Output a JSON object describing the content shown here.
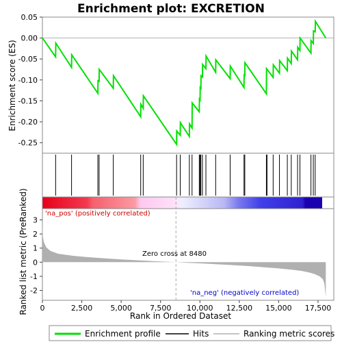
{
  "chart_data": [
    {
      "type": "line",
      "title": "Enrichment plot: EXCRETION",
      "ylabel": "Enrichment score (ES)",
      "xlim": [
        0,
        18500
      ],
      "ylim": [
        -0.275,
        0.05
      ],
      "yticks": [
        0.05,
        0.0,
        -0.05,
        -0.1,
        -0.15,
        -0.2,
        -0.25
      ],
      "ytick_labels": [
        "0.05",
        "0.00",
        "-0.05",
        "-0.10",
        "-0.15",
        "-0.20",
        "-0.25"
      ],
      "series": [
        {
          "name": "Enrichment profile",
          "color": "#00e000",
          "x": [
            0,
            840,
            850,
            1850,
            1860,
            3520,
            3530,
            3600,
            3610,
            4500,
            4510,
            6240,
            6250,
            6400,
            6410,
            8520,
            8530,
            8750,
            8760,
            9330,
            9340,
            9500,
            9510,
            9960,
            9970,
            10010,
            10020,
            10060,
            10070,
            10160,
            10170,
            10380,
            10390,
            11000,
            11010,
            11920,
            11930,
            12800,
            12810,
            12850,
            12860,
            14220,
            14230,
            14650,
            14660,
            15050,
            15060,
            15550,
            15560,
            15800,
            15810,
            16200,
            16210,
            16350,
            16360,
            17050,
            17060,
            17200,
            17210,
            17320,
            17330,
            17990
          ],
          "y": [
            0.0,
            -0.045,
            -0.012,
            -0.07,
            -0.04,
            -0.132,
            -0.1,
            -0.105,
            -0.075,
            -0.12,
            -0.09,
            -0.188,
            -0.158,
            -0.168,
            -0.138,
            -0.254,
            -0.222,
            -0.232,
            -0.202,
            -0.235,
            -0.205,
            -0.215,
            -0.155,
            -0.176,
            -0.146,
            -0.148,
            -0.118,
            -0.12,
            -0.09,
            -0.093,
            -0.063,
            -0.073,
            -0.043,
            -0.082,
            -0.052,
            -0.097,
            -0.067,
            -0.118,
            -0.088,
            -0.089,
            -0.059,
            -0.133,
            -0.073,
            -0.094,
            -0.064,
            -0.084,
            -0.054,
            -0.078,
            -0.048,
            -0.061,
            -0.031,
            -0.052,
            -0.022,
            -0.03,
            0.0,
            -0.036,
            -0.006,
            -0.013,
            0.017,
            0.015,
            0.04,
            0.0
          ]
        }
      ]
    },
    {
      "type": "scatter",
      "series": [
        {
          "name": "Hits",
          "x": [
            840,
            1850,
            3520,
            3600,
            4500,
            6240,
            6400,
            8520,
            8750,
            9330,
            9500,
            9960,
            10010,
            10060,
            10160,
            10380,
            11000,
            11920,
            12800,
            12850,
            14220,
            14260,
            14650,
            15050,
            15550,
            15800,
            16200,
            16350,
            17050,
            17200,
            17320
          ]
        }
      ]
    },
    {
      "type": "area",
      "xlabel": "Rank in Ordered Dataset",
      "ylabel": "Ranked list metric (PreRanked)",
      "xlim": [
        0,
        18500
      ],
      "ylim": [
        -2.7,
        3.8
      ],
      "xticks": [
        0,
        2500,
        5000,
        7500,
        10000,
        12500,
        15000,
        17500
      ],
      "xtick_labels": [
        "0",
        "2,500",
        "5,000",
        "7,500",
        "10,000",
        "12,500",
        "15,000",
        "17,500"
      ],
      "yticks": [
        3,
        2,
        1,
        0,
        -1,
        -2
      ],
      "ytick_labels": [
        "3",
        "2",
        "1",
        "0",
        "-1",
        "-2"
      ],
      "series": [
        {
          "name": "Ranking metric scores",
          "color": "#b0b0b0",
          "x": [
            0,
            30,
            100,
            250,
            500,
            1000,
            2000,
            3000,
            4000,
            5000,
            6000,
            7000,
            8000,
            8480,
            9000,
            10000,
            11000,
            12000,
            13000,
            14000,
            15000,
            16000,
            16500,
            17000,
            17300,
            17600,
            17800,
            17900,
            17990
          ],
          "y": [
            3.1,
            1.8,
            1.4,
            1.05,
            0.8,
            0.6,
            0.45,
            0.35,
            0.27,
            0.2,
            0.14,
            0.08,
            0.03,
            0.0,
            -0.03,
            -0.08,
            -0.14,
            -0.2,
            -0.27,
            -0.35,
            -0.44,
            -0.55,
            -0.63,
            -0.75,
            -0.85,
            -1.0,
            -1.2,
            -1.5,
            -2.45
          ]
        }
      ],
      "annotations": {
        "zero_cross": "Zero cross at 8480",
        "pos_label": "'na_pos' (positively correlated)",
        "neg_label": "'na_neg' (negatively correlated)"
      }
    }
  ],
  "zero_cross_rank": 8480,
  "max_rank": 17990,
  "legend": [
    {
      "label": "Enrichment profile",
      "color": "#00e000"
    },
    {
      "label": "Hits",
      "color": "#000000"
    },
    {
      "label": "Ranking metric scores",
      "color": "#b0b0b0"
    }
  ]
}
